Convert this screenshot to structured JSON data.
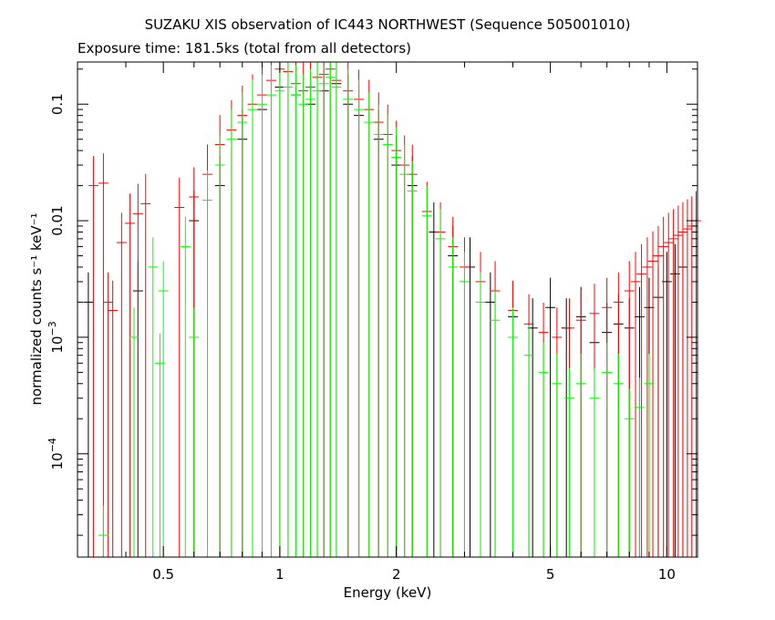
{
  "chart_data": {
    "type": "scatter",
    "title": "SUZAKU XIS observation of IC443 NORTHWEST (Sequence 505001010)",
    "subtitle": "Exposure time: 181.5ks (total from all detectors)",
    "xlabel": "Energy (keV)",
    "ylabel": "normalized counts s⁻¹ keV⁻¹",
    "xscale": "log",
    "yscale": "log",
    "xlim": [
      0.3,
      12
    ],
    "ylim": [
      1.3e-05,
      0.23
    ],
    "x_ticks": [
      {
        "value": 0.5,
        "label": "0.5"
      },
      {
        "value": 1,
        "label": "1"
      },
      {
        "value": 2,
        "label": "2"
      },
      {
        "value": 5,
        "label": "5"
      },
      {
        "value": 10,
        "label": "10"
      }
    ],
    "y_ticks": [
      {
        "value": 0.0001,
        "mant": "10",
        "exp": "−4"
      },
      {
        "value": 0.001,
        "mant": "10",
        "exp": "−3"
      },
      {
        "value": 0.01,
        "mant": "0.01",
        "exp": ""
      },
      {
        "value": 0.1,
        "mant": "0.1",
        "exp": ""
      }
    ],
    "grid": false,
    "series": [
      {
        "color": "#000000",
        "points": [
          [
            0.32,
            0.002
          ],
          [
            0.43,
            0.0025
          ],
          [
            0.6,
            0.01
          ],
          [
            0.7,
            0.02
          ],
          [
            0.8,
            0.05
          ],
          [
            0.9,
            0.09
          ],
          [
            1.0,
            0.14
          ],
          [
            1.1,
            0.12
          ],
          [
            1.2,
            0.1
          ],
          [
            1.3,
            0.13
          ],
          [
            1.4,
            0.15
          ],
          [
            1.5,
            0.1
          ],
          [
            1.6,
            0.08
          ],
          [
            1.8,
            0.05
          ],
          [
            2.0,
            0.03
          ],
          [
            2.2,
            0.02
          ],
          [
            2.5,
            0.008
          ],
          [
            2.8,
            0.005
          ],
          [
            3.1,
            0.004
          ],
          [
            3.5,
            0.002
          ],
          [
            4.0,
            0.0015
          ],
          [
            4.5,
            0.0012
          ],
          [
            5.0,
            0.0018
          ],
          [
            5.5,
            0.0012
          ],
          [
            6.0,
            0.0015
          ],
          [
            6.5,
            0.0009
          ],
          [
            7.0,
            0.0011
          ],
          [
            7.5,
            0.0013
          ],
          [
            8.0,
            0.0012
          ],
          [
            8.5,
            0.0015
          ],
          [
            9.0,
            0.0018
          ],
          [
            9.5,
            0.0022
          ],
          [
            10.0,
            0.003
          ],
          [
            10.5,
            0.0035
          ],
          [
            11.0,
            0.004
          ]
        ]
      },
      {
        "color": "#ff0000",
        "points": [
          [
            0.33,
            0.02
          ],
          [
            0.35,
            0.021
          ],
          [
            0.36,
            0.002
          ],
          [
            0.37,
            0.0017
          ],
          [
            0.39,
            0.0065
          ],
          [
            0.41,
            0.0095
          ],
          [
            0.43,
            0.0115
          ],
          [
            0.45,
            0.014
          ],
          [
            0.55,
            0.013
          ],
          [
            0.6,
            0.016
          ],
          [
            0.65,
            0.025
          ],
          [
            0.7,
            0.045
          ],
          [
            0.75,
            0.06
          ],
          [
            0.8,
            0.08
          ],
          [
            0.85,
            0.1
          ],
          [
            0.9,
            0.12
          ],
          [
            0.95,
            0.16
          ],
          [
            1.0,
            0.2
          ],
          [
            1.05,
            0.19
          ],
          [
            1.1,
            0.15
          ],
          [
            1.15,
            0.13
          ],
          [
            1.2,
            0.14
          ],
          [
            1.25,
            0.17
          ],
          [
            1.3,
            0.18
          ],
          [
            1.35,
            0.2
          ],
          [
            1.4,
            0.16
          ],
          [
            1.5,
            0.13
          ],
          [
            1.6,
            0.11
          ],
          [
            1.7,
            0.09
          ],
          [
            1.8,
            0.07
          ],
          [
            1.9,
            0.055
          ],
          [
            2.0,
            0.04
          ],
          [
            2.1,
            0.03
          ],
          [
            2.2,
            0.025
          ],
          [
            2.4,
            0.012
          ],
          [
            2.6,
            0.008
          ],
          [
            2.8,
            0.006
          ],
          [
            3.0,
            0.004
          ],
          [
            3.3,
            0.003
          ],
          [
            3.6,
            0.0025
          ],
          [
            4.0,
            0.0017
          ],
          [
            4.4,
            0.0013
          ],
          [
            4.8,
            0.0011
          ],
          [
            5.2,
            0.001
          ],
          [
            5.6,
            0.0012
          ],
          [
            6.0,
            0.0014
          ],
          [
            6.5,
            0.0016
          ],
          [
            7.0,
            0.0018
          ],
          [
            7.5,
            0.002
          ],
          [
            8.0,
            0.0025
          ],
          [
            8.3,
            0.003
          ],
          [
            8.6,
            0.0035
          ],
          [
            8.9,
            0.004
          ],
          [
            9.2,
            0.0045
          ],
          [
            9.5,
            0.005
          ],
          [
            9.8,
            0.006
          ],
          [
            10.1,
            0.0065
          ],
          [
            10.4,
            0.007
          ],
          [
            10.7,
            0.0075
          ],
          [
            11.0,
            0.008
          ],
          [
            11.3,
            0.0085
          ],
          [
            11.6,
            0.009
          ],
          [
            11.9,
            0.01
          ]
        ]
      },
      {
        "color": "#00ff00",
        "points": [
          [
            0.35,
            2e-05
          ],
          [
            0.42,
            0.001
          ],
          [
            0.47,
            0.004
          ],
          [
            0.49,
            0.0006
          ],
          [
            0.5,
            0.0025
          ],
          [
            0.57,
            0.006
          ],
          [
            0.6,
            0.001
          ],
          [
            0.65,
            0.015
          ],
          [
            0.7,
            0.03
          ],
          [
            0.75,
            0.05
          ],
          [
            0.8,
            0.07
          ],
          [
            0.85,
            0.09
          ],
          [
            0.9,
            0.1
          ],
          [
            0.95,
            0.12
          ],
          [
            1.0,
            0.13
          ],
          [
            1.05,
            0.14
          ],
          [
            1.1,
            0.12
          ],
          [
            1.15,
            0.1
          ],
          [
            1.2,
            0.11
          ],
          [
            1.25,
            0.13
          ],
          [
            1.3,
            0.15
          ],
          [
            1.35,
            0.17
          ],
          [
            1.4,
            0.14
          ],
          [
            1.5,
            0.11
          ],
          [
            1.6,
            0.09
          ],
          [
            1.7,
            0.07
          ],
          [
            1.8,
            0.055
          ],
          [
            1.9,
            0.045
          ],
          [
            2.0,
            0.035
          ],
          [
            2.1,
            0.025
          ],
          [
            2.2,
            0.018
          ],
          [
            2.4,
            0.011
          ],
          [
            2.6,
            0.007
          ],
          [
            2.8,
            0.004
          ],
          [
            3.0,
            0.003
          ],
          [
            3.3,
            0.002
          ],
          [
            3.6,
            0.0014
          ],
          [
            4.0,
            0.001
          ],
          [
            4.4,
            0.0007
          ],
          [
            4.8,
            0.0005
          ],
          [
            5.2,
            0.0004
          ],
          [
            5.6,
            0.0003
          ],
          [
            6.0,
            0.0004
          ],
          [
            6.5,
            0.0003
          ],
          [
            7.0,
            0.0005
          ],
          [
            7.5,
            0.0004
          ],
          [
            8.0,
            0.0002
          ],
          [
            8.5,
            0.00025
          ],
          [
            9.0,
            0.0004
          ]
        ]
      }
    ]
  }
}
